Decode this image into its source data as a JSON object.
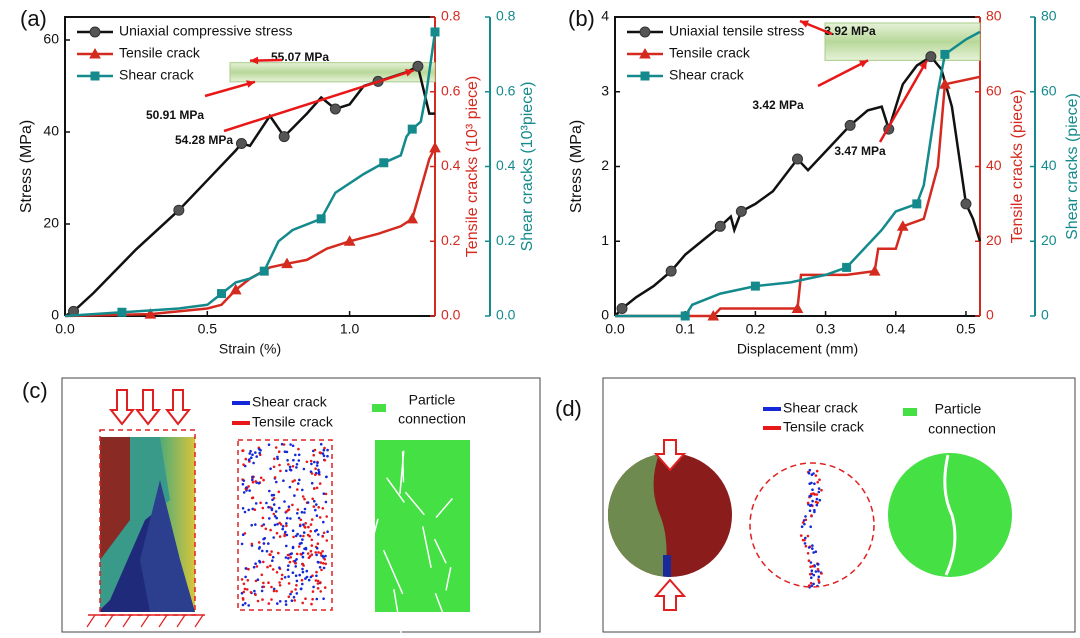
{
  "chart_data": [
    {
      "type": "line",
      "panel_label": "(a)",
      "xlabel": "Strain (%)",
      "ylabel": "Stress (MPa)",
      "y2label": "Tensile cracks (10³ piece)",
      "y3label": "Shear cracks (10³piece)",
      "xlim": [
        0,
        1.3
      ],
      "xticks": [
        {
          "value": 0,
          "label": "0.0"
        },
        0.5,
        {
          "value": 1,
          "label": "1.0"
        }
      ],
      "ylim": [
        0,
        65
      ],
      "yticks": [
        0,
        20,
        40,
        60
      ],
      "y2lim": [
        0,
        0.8
      ],
      "y2ticks": [
        {
          "value": 0,
          "label": "0.0"
        },
        0.2,
        0.4,
        0.6,
        0.8
      ],
      "y3lim": [
        0,
        0.8
      ],
      "y3ticks": [
        {
          "value": 0,
          "label": "0.0"
        },
        0.2,
        0.4,
        0.6,
        0.8
      ],
      "y2color": "#d42a1f",
      "y3color": "#148a8c",
      "legend": "upper left",
      "series": [
        {
          "name": "Uniaxial compressive stress",
          "color": "#111111",
          "marker": "circle",
          "axis": "y",
          "x": [
            0,
            0.03,
            0.1,
            0.25,
            0.4,
            0.5,
            0.6,
            0.62,
            0.65,
            0.72,
            0.77,
            0.85,
            0.9,
            0.95,
            1.0,
            1.05,
            1.1,
            1.15,
            1.2,
            1.24,
            1.28,
            1.3
          ],
          "values": [
            0,
            1,
            5,
            14.5,
            23,
            29.5,
            36,
            37.5,
            37,
            43.5,
            39,
            44,
            47.5,
            45,
            46,
            50,
            51,
            52,
            53,
            54.28,
            44,
            44
          ]
        },
        {
          "name": "Tensile crack",
          "color": "#d42a1f",
          "marker": "triangle",
          "axis": "y2",
          "x": [
            0,
            0.3,
            0.5,
            0.55,
            0.6,
            0.65,
            0.72,
            0.78,
            0.85,
            0.92,
            1.0,
            1.1,
            1.18,
            1.22,
            1.25,
            1.28,
            1.3
          ],
          "values": [
            0,
            0.005,
            0.02,
            0.03,
            0.07,
            0.1,
            0.13,
            0.14,
            0.15,
            0.18,
            0.2,
            0.22,
            0.24,
            0.26,
            0.34,
            0.42,
            0.45
          ]
        },
        {
          "name": "Shear crack",
          "color": "#148a8c",
          "marker": "square",
          "axis": "y3",
          "x": [
            0,
            0.2,
            0.4,
            0.5,
            0.55,
            0.6,
            0.65,
            0.7,
            0.75,
            0.8,
            0.9,
            0.95,
            1.05,
            1.12,
            1.18,
            1.2,
            1.22,
            1.25,
            1.27,
            1.3
          ],
          "values": [
            0,
            0.01,
            0.02,
            0.03,
            0.06,
            0.09,
            0.1,
            0.12,
            0.2,
            0.23,
            0.26,
            0.33,
            0.38,
            0.41,
            0.43,
            0.48,
            0.5,
            0.52,
            0.6,
            0.76
          ]
        }
      ],
      "annotations": [
        {
          "text": "55.07 MPa",
          "y": 55.07
        },
        {
          "text": "50.91 MPa",
          "y": 50.91
        },
        {
          "text": "54.28 MPa",
          "x": 1.24,
          "y": 54.28
        }
      ]
    },
    {
      "type": "line",
      "panel_label": "(b)",
      "xlabel": "Displacement (mm)",
      "ylabel": "Stress (MPa)",
      "y2label": "Tensile cracks (piece)",
      "y3label": "Shear cracks (piece)",
      "xlim": [
        0,
        0.52
      ],
      "xticks": [
        {
          "value": 0,
          "label": "0.0"
        },
        0.1,
        0.2,
        0.3,
        0.4,
        0.5
      ],
      "ylim": [
        0,
        4
      ],
      "yticks": [
        0,
        1,
        2,
        3,
        4
      ],
      "y2lim": [
        0,
        80
      ],
      "y2ticks": [
        0,
        20,
        40,
        60,
        80
      ],
      "y3lim": [
        0,
        80
      ],
      "y3ticks": [
        0,
        20,
        40,
        60,
        80
      ],
      "y2color": "#d42a1f",
      "y3color": "#148a8c",
      "legend": "upper left",
      "series": [
        {
          "name": "Uniaxial tensile stress",
          "color": "#111111",
          "marker": "circle",
          "axis": "y",
          "x": [
            0,
            0.01,
            0.03,
            0.055,
            0.08,
            0.1,
            0.13,
            0.15,
            0.165,
            0.17,
            0.18,
            0.2,
            0.225,
            0.26,
            0.275,
            0.3,
            0.335,
            0.36,
            0.38,
            0.39,
            0.41,
            0.43,
            0.45,
            0.465,
            0.48,
            0.5,
            0.51,
            0.52
          ],
          "values": [
            0,
            0.1,
            0.25,
            0.4,
            0.6,
            0.82,
            1.05,
            1.2,
            1.33,
            1.15,
            1.4,
            1.5,
            1.67,
            2.1,
            1.95,
            2.2,
            2.55,
            2.75,
            2.8,
            2.5,
            3.1,
            3.35,
            3.47,
            3.3,
            2.8,
            1.5,
            1.3,
            1.0
          ]
        },
        {
          "name": "Tensile crack",
          "color": "#d42a1f",
          "marker": "triangle",
          "axis": "y2",
          "x": [
            0,
            0.14,
            0.15,
            0.2,
            0.26,
            0.265,
            0.33,
            0.37,
            0.375,
            0.4,
            0.41,
            0.44,
            0.46,
            0.47,
            0.52
          ],
          "values": [
            0,
            0,
            2,
            2,
            2,
            11,
            11,
            12,
            18,
            18,
            24,
            26,
            40,
            62,
            64
          ]
        },
        {
          "name": "Shear crack",
          "color": "#148a8c",
          "marker": "square",
          "axis": "y3",
          "x": [
            0,
            0.1,
            0.11,
            0.15,
            0.2,
            0.25,
            0.3,
            0.33,
            0.38,
            0.4,
            0.43,
            0.44,
            0.46,
            0.47,
            0.5,
            0.52
          ],
          "values": [
            0,
            0,
            3,
            6,
            8,
            9,
            11,
            13,
            23,
            28,
            30,
            35,
            60,
            70,
            74,
            76
          ]
        }
      ],
      "annotations": [
        {
          "text": "3.92 MPa",
          "y": 3.92
        },
        {
          "text": "3.42 MPa",
          "y": 3.42
        },
        {
          "text": "3.47 MPa",
          "x": 0.45,
          "y": 3.47
        }
      ]
    }
  ],
  "panel_c": {
    "label": "(c)",
    "legend": [
      "Shear crack",
      "Tensile crack"
    ],
    "particle_label": [
      "Particle",
      "connection"
    ]
  },
  "panel_d": {
    "label": "(d)",
    "legend": [
      "Shear crack",
      "Tensile crack"
    ],
    "particle_label": [
      "Particle",
      "connection"
    ]
  }
}
